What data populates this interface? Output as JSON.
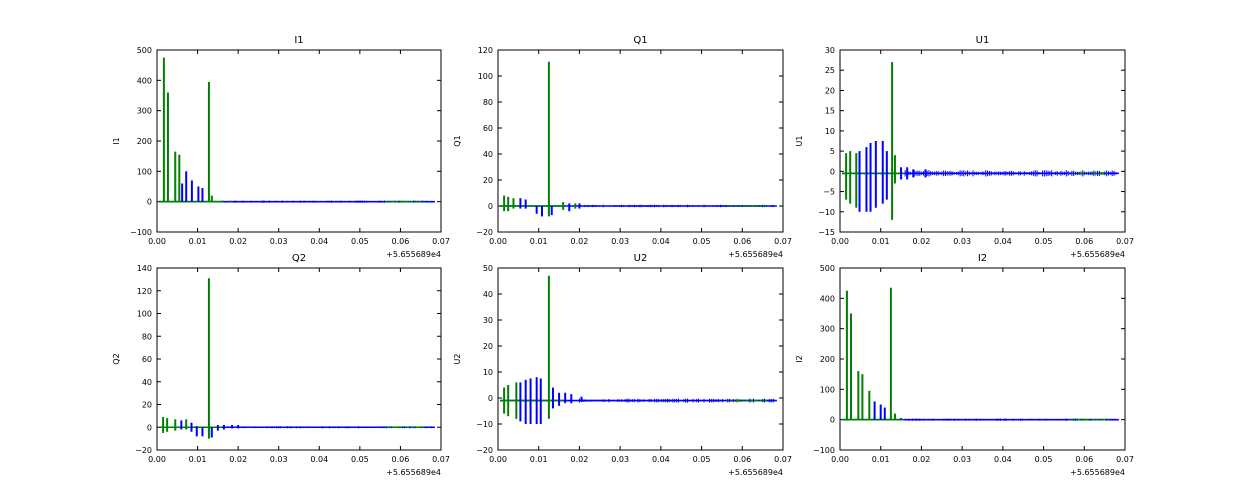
{
  "figure": {
    "colors": {
      "series_blue": "#0000ff",
      "series_green": "#008000",
      "axes": "#000000",
      "background": "#ffffff"
    }
  },
  "chart_data": [
    {
      "type": "line",
      "title": "I1",
      "ylabel": "I1",
      "xlabel": "",
      "xlim": [
        0.0,
        0.07
      ],
      "ylim": [
        -100,
        500
      ],
      "xticks": [
        0.0,
        0.01,
        0.02,
        0.03,
        0.04,
        0.05,
        0.06,
        0.07
      ],
      "xtick_labels": [
        "0.00",
        "0.01",
        "0.02",
        "0.03",
        "0.04",
        "0.05",
        "0.06",
        "0.07"
      ],
      "yticks": [
        -100,
        0,
        100,
        200,
        300,
        400,
        500
      ],
      "ytick_labels": [
        "−100",
        "0",
        "100",
        "200",
        "300",
        "400",
        "500"
      ],
      "x_offset_label": "+5.655689e4",
      "baseline": 0,
      "series": [
        {
          "color": "green",
          "spikes": [
            [
              0.0017,
              0,
              475
            ],
            [
              0.0027,
              0,
              360
            ],
            [
              0.0045,
              0,
              165
            ],
            [
              0.0055,
              0,
              155
            ],
            [
              0.0128,
              0,
              395
            ],
            [
              0.0135,
              0,
              20
            ],
            [
              0.016,
              -3,
              3
            ],
            [
              0.018,
              -3,
              3
            ]
          ]
        },
        {
          "color": "blue",
          "spikes": [
            [
              0.0072,
              0,
              100
            ],
            [
              0.0086,
              0,
              70
            ],
            [
              0.0102,
              0,
              50
            ],
            [
              0.0112,
              0,
              45
            ],
            [
              0.0062,
              0,
              60
            ]
          ]
        }
      ],
      "noise_band": [
        0.016,
        0.068,
        4
      ]
    },
    {
      "type": "line",
      "title": "Q1",
      "ylabel": "Q1",
      "xlabel": "",
      "xlim": [
        0.0,
        0.07
      ],
      "ylim": [
        -20,
        120
      ],
      "xticks": [
        0.0,
        0.01,
        0.02,
        0.03,
        0.04,
        0.05,
        0.06,
        0.07
      ],
      "xtick_labels": [
        "0.00",
        "0.01",
        "0.02",
        "0.03",
        "0.04",
        "0.05",
        "0.06",
        "0.07"
      ],
      "yticks": [
        -20,
        0,
        20,
        40,
        60,
        80,
        100,
        120
      ],
      "ytick_labels": [
        "−20",
        "0",
        "20",
        "40",
        "60",
        "80",
        "100",
        "120"
      ],
      "x_offset_label": "+5.655689e4",
      "baseline": 0,
      "series": [
        {
          "color": "green",
          "spikes": [
            [
              0.0015,
              -4,
              8
            ],
            [
              0.0025,
              -4,
              7
            ],
            [
              0.0038,
              -2,
              6
            ],
            [
              0.0125,
              -8,
              111
            ],
            [
              0.016,
              -3,
              3
            ],
            [
              0.019,
              -2,
              2
            ]
          ]
        },
        {
          "color": "blue",
          "spikes": [
            [
              0.0055,
              -2,
              6
            ],
            [
              0.0068,
              -2,
              5
            ],
            [
              0.0095,
              -6,
              0
            ],
            [
              0.0108,
              -8,
              0
            ],
            [
              0.0132,
              -7,
              0
            ],
            [
              0.0175,
              -4,
              2
            ],
            [
              0.02,
              -2,
              2
            ]
          ]
        }
      ],
      "noise_band": [
        0.02,
        0.068,
        1
      ]
    },
    {
      "type": "line",
      "title": "U1",
      "ylabel": "U1",
      "xlabel": "",
      "xlim": [
        0.0,
        0.07
      ],
      "ylim": [
        -15,
        30
      ],
      "xticks": [
        0.0,
        0.01,
        0.02,
        0.03,
        0.04,
        0.05,
        0.06,
        0.07
      ],
      "xtick_labels": [
        "0.00",
        "0.01",
        "0.02",
        "0.03",
        "0.04",
        "0.05",
        "0.06",
        "0.07"
      ],
      "yticks": [
        -15,
        -10,
        -5,
        0,
        5,
        10,
        15,
        20,
        25,
        30
      ],
      "ytick_labels": [
        "−15",
        "−10",
        "−5",
        "0",
        "5",
        "10",
        "15",
        "20",
        "25",
        "30"
      ],
      "x_offset_label": "+5.655689e4",
      "baseline": -0.5,
      "series": [
        {
          "color": "green",
          "spikes": [
            [
              0.0015,
              -7,
              4.5
            ],
            [
              0.0025,
              -8,
              5
            ],
            [
              0.004,
              -9,
              4.5
            ],
            [
              0.0128,
              -12,
              27
            ],
            [
              0.0135,
              -3,
              4
            ]
          ]
        },
        {
          "color": "blue",
          "spikes": [
            [
              0.0048,
              -10,
              5
            ],
            [
              0.0065,
              -10,
              6
            ],
            [
              0.0075,
              -10,
              7
            ],
            [
              0.0088,
              -9,
              7.5
            ],
            [
              0.0105,
              -8,
              7.5
            ],
            [
              0.0115,
              -7,
              5
            ],
            [
              0.015,
              -2,
              1
            ],
            [
              0.0165,
              -2,
              1
            ],
            [
              0.018,
              -1.5,
              0.5
            ],
            [
              0.021,
              -1.5,
              0.5
            ]
          ]
        }
      ],
      "noise_band": [
        0.016,
        0.068,
        0.8
      ]
    },
    {
      "type": "line",
      "title": "Q2",
      "ylabel": "Q2",
      "xlabel": "",
      "xlim": [
        0.0,
        0.07
      ],
      "ylim": [
        -20,
        140
      ],
      "xticks": [
        0.0,
        0.01,
        0.02,
        0.03,
        0.04,
        0.05,
        0.06,
        0.07
      ],
      "xtick_labels": [
        "0.00",
        "0.01",
        "0.02",
        "0.03",
        "0.04",
        "0.05",
        "0.06",
        "0.07"
      ],
      "yticks": [
        -20,
        0,
        20,
        40,
        60,
        80,
        100,
        120,
        140
      ],
      "ytick_labels": [
        "−20",
        "0",
        "20",
        "40",
        "60",
        "80",
        "100",
        "120",
        "140"
      ],
      "x_offset_label": "+5.655689e4",
      "baseline": 0,
      "series": [
        {
          "color": "green",
          "spikes": [
            [
              0.0015,
              -5,
              9
            ],
            [
              0.0025,
              -4,
              8
            ],
            [
              0.0045,
              -3,
              7
            ],
            [
              0.0072,
              -2,
              7
            ],
            [
              0.0128,
              -10,
              131
            ]
          ]
        },
        {
          "color": "blue",
          "spikes": [
            [
              0.006,
              -2,
              6
            ],
            [
              0.0085,
              -4,
              4
            ],
            [
              0.0098,
              -8,
              1
            ],
            [
              0.0112,
              -8,
              0
            ],
            [
              0.0135,
              -9,
              0
            ],
            [
              0.015,
              -3,
              2
            ],
            [
              0.0165,
              -2,
              2
            ],
            [
              0.0185,
              -1,
              2
            ],
            [
              0.02,
              -1,
              2
            ]
          ]
        }
      ],
      "noise_band": [
        0.02,
        0.068,
        1
      ]
    },
    {
      "type": "line",
      "title": "U2",
      "ylabel": "U2",
      "xlabel": "",
      "xlim": [
        0.0,
        0.07
      ],
      "ylim": [
        -20,
        50
      ],
      "xticks": [
        0.0,
        0.01,
        0.02,
        0.03,
        0.04,
        0.05,
        0.06,
        0.07
      ],
      "xtick_labels": [
        "0.00",
        "0.01",
        "0.02",
        "0.03",
        "0.04",
        "0.05",
        "0.06",
        "0.07"
      ],
      "yticks": [
        -20,
        -10,
        0,
        10,
        20,
        30,
        40,
        50
      ],
      "ytick_labels": [
        "−20",
        "−10",
        "0",
        "10",
        "20",
        "30",
        "40",
        "50"
      ],
      "x_offset_label": "+5.655689e4",
      "baseline": -1,
      "series": [
        {
          "color": "green",
          "spikes": [
            [
              0.0015,
              -6,
              4
            ],
            [
              0.0025,
              -7,
              5
            ],
            [
              0.0045,
              -8,
              6
            ],
            [
              0.0125,
              -8,
              47
            ]
          ]
        },
        {
          "color": "blue",
          "spikes": [
            [
              0.0055,
              -9,
              6
            ],
            [
              0.0068,
              -10,
              7
            ],
            [
              0.008,
              -10,
              7.5
            ],
            [
              0.0095,
              -10,
              8
            ],
            [
              0.0105,
              -10,
              7.5
            ],
            [
              0.0135,
              -4,
              4
            ],
            [
              0.015,
              -3,
              2
            ],
            [
              0.0165,
              -2,
              2
            ],
            [
              0.018,
              -2,
              1.5
            ],
            [
              0.0205,
              -1.5,
              0.5
            ]
          ]
        }
      ],
      "noise_band": [
        0.02,
        0.068,
        0.8
      ]
    },
    {
      "type": "line",
      "title": "I2",
      "ylabel": "I2",
      "xlabel": "",
      "xlim": [
        0.0,
        0.07
      ],
      "ylim": [
        -100,
        500
      ],
      "xticks": [
        0.0,
        0.01,
        0.02,
        0.03,
        0.04,
        0.05,
        0.06,
        0.07
      ],
      "xtick_labels": [
        "0.00",
        "0.01",
        "0.02",
        "0.03",
        "0.04",
        "0.05",
        "0.06",
        "0.07"
      ],
      "yticks": [
        -100,
        0,
        100,
        200,
        300,
        400,
        500
      ],
      "ytick_labels": [
        "−100",
        "0",
        "100",
        "200",
        "300",
        "400",
        "500"
      ],
      "x_offset_label": "+5.655689e4",
      "baseline": 0,
      "series": [
        {
          "color": "green",
          "spikes": [
            [
              0.0017,
              0,
              425
            ],
            [
              0.0027,
              0,
              350
            ],
            [
              0.0045,
              0,
              160
            ],
            [
              0.0055,
              0,
              150
            ],
            [
              0.0072,
              0,
              95
            ],
            [
              0.0125,
              0,
              435
            ],
            [
              0.0135,
              0,
              20
            ]
          ]
        },
        {
          "color": "blue",
          "spikes": [
            [
              0.0085,
              0,
              60
            ],
            [
              0.01,
              0,
              50
            ],
            [
              0.011,
              0,
              40
            ],
            [
              0.015,
              0,
              5
            ]
          ]
        }
      ],
      "noise_band": [
        0.016,
        0.068,
        4
      ]
    }
  ]
}
